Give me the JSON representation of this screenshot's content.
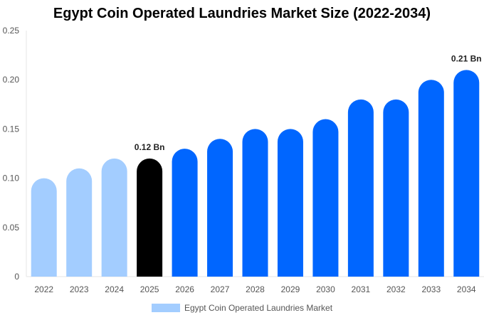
{
  "chart_data": {
    "type": "bar",
    "title": "Egypt Coin Operated Laundries Market Size (2022-2034)",
    "categories": [
      "2022",
      "2023",
      "2024",
      "2025",
      "2026",
      "2027",
      "2028",
      "2029",
      "2030",
      "2031",
      "2032",
      "2033",
      "2034"
    ],
    "series": [
      {
        "name": "Egypt Coin Operated Laundries Market",
        "values": [
          0.1,
          0.11,
          0.12,
          0.12,
          0.13,
          0.14,
          0.15,
          0.15,
          0.16,
          0.18,
          0.18,
          0.2,
          0.21
        ]
      }
    ],
    "ylim": [
      0,
      0.25
    ],
    "yticks": [
      "0",
      "0.05",
      "0.10",
      "0.15",
      "0.20",
      "0.25"
    ],
    "annotations": [
      {
        "category": "2025",
        "text": "0.12 Bn"
      },
      {
        "category": "2034",
        "text": "0.21 Bn"
      }
    ],
    "colors": {
      "historical": "#a3cdff",
      "current": "#000000",
      "forecast": "#0066ff"
    },
    "grid": false,
    "legend_position": "bottom"
  }
}
